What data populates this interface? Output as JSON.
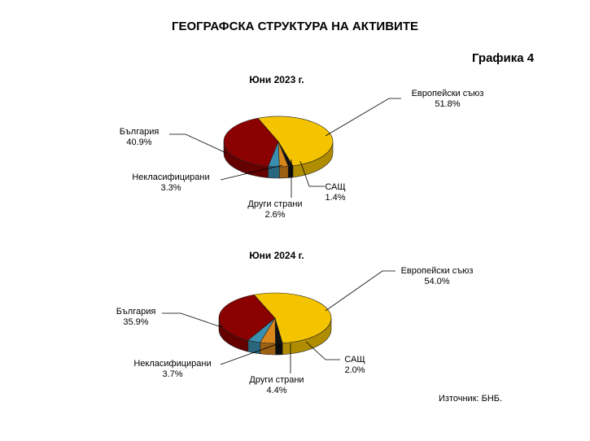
{
  "page": {
    "title": "ГЕОГРАФСКА СТРУКТУРА НА АКТИВИТЕ",
    "graph_label": "Графика 4",
    "source": "Източник:  БНБ."
  },
  "colors": {
    "eu": "#f5c400",
    "bulgaria": "#8b0000",
    "unclassified": "#3a8fb0",
    "other": "#d9861a",
    "usa": "#111111"
  },
  "chart_data": [
    {
      "type": "pie",
      "title": "Юни 2023 г.",
      "slices": [
        {
          "name": "Европейски съюз",
          "label": "Европейски съюз",
          "value": 51.8,
          "value_label": "51.8%",
          "color": "#f5c400"
        },
        {
          "name": "САЩ",
          "label": "САЩ",
          "value": 1.4,
          "value_label": "1.4%",
          "color": "#111111"
        },
        {
          "name": "Други страни",
          "label": "Други страни",
          "value": 2.6,
          "value_label": "2.6%",
          "color": "#d9861a"
        },
        {
          "name": "Некласифицирани",
          "label": "Некласифицирани",
          "value": 3.3,
          "value_label": "3.3%",
          "color": "#3a8fb0"
        },
        {
          "name": "България",
          "label": "България",
          "value": 40.9,
          "value_label": "40.9%",
          "color": "#8b0000"
        }
      ]
    },
    {
      "type": "pie",
      "title": "Юни 2024 г.",
      "slices": [
        {
          "name": "Европейски съюз",
          "label": "Европейски съюз",
          "value": 54.0,
          "value_label": "54.0%",
          "color": "#f5c400"
        },
        {
          "name": "САЩ",
          "label": "САЩ",
          "value": 2.0,
          "value_label": "2.0%",
          "color": "#111111"
        },
        {
          "name": "Други страни",
          "label": "Други страни",
          "value": 4.4,
          "value_label": "4.4%",
          "color": "#d9861a"
        },
        {
          "name": "Некласифицирани",
          "label": "Некласифицирани",
          "value": 3.7,
          "value_label": "3.7%",
          "color": "#3a8fb0"
        },
        {
          "name": "България",
          "label": "България",
          "value": 35.9,
          "value_label": "35.9%",
          "color": "#8b0000"
        }
      ]
    }
  ]
}
